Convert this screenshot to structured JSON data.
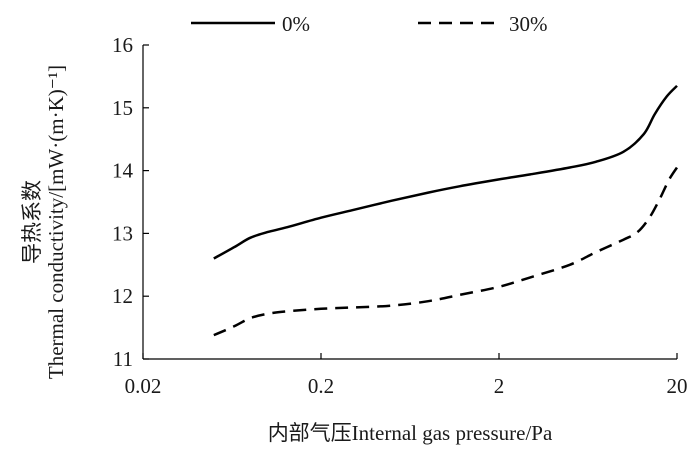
{
  "chart_data": {
    "type": "line",
    "xlabel": "内部气压Internal gas pressure/Pa",
    "ylabel_line1": "导热系数",
    "ylabel_line2": "Thermal conductivity/[mW·(m·K)⁻¹]",
    "x_scale": "log",
    "xlim": [
      0.02,
      20
    ],
    "ylim": [
      11,
      16
    ],
    "x_ticks": [
      0.02,
      0.2,
      2,
      20
    ],
    "x_tick_labels": [
      "0.02",
      "0.2",
      "2",
      "20"
    ],
    "y_ticks": [
      11,
      12,
      13,
      14,
      15,
      16
    ],
    "y_tick_labels": [
      "11",
      "12",
      "13",
      "14",
      "15",
      "16"
    ],
    "grid": false,
    "legend_position": "top",
    "series": [
      {
        "name": "0%",
        "style": "solid",
        "color": "#000000",
        "points": [
          [
            0.05,
            12.6
          ],
          [
            0.065,
            12.78
          ],
          [
            0.08,
            12.93
          ],
          [
            0.1,
            13.02
          ],
          [
            0.13,
            13.1
          ],
          [
            0.2,
            13.25
          ],
          [
            0.3,
            13.37
          ],
          [
            0.5,
            13.52
          ],
          [
            0.8,
            13.65
          ],
          [
            1.2,
            13.75
          ],
          [
            2,
            13.86
          ],
          [
            3,
            13.94
          ],
          [
            5,
            14.05
          ],
          [
            7,
            14.14
          ],
          [
            10,
            14.3
          ],
          [
            13,
            14.58
          ],
          [
            15,
            14.9
          ],
          [
            17.5,
            15.18
          ],
          [
            20,
            15.35
          ]
        ]
      },
      {
        "name": "30%",
        "style": "dashed",
        "color": "#000000",
        "points": [
          [
            0.05,
            11.38
          ],
          [
            0.065,
            11.52
          ],
          [
            0.08,
            11.65
          ],
          [
            0.1,
            11.72
          ],
          [
            0.13,
            11.76
          ],
          [
            0.2,
            11.8
          ],
          [
            0.3,
            11.82
          ],
          [
            0.5,
            11.85
          ],
          [
            0.8,
            11.92
          ],
          [
            1.2,
            12.02
          ],
          [
            2,
            12.15
          ],
          [
            3,
            12.3
          ],
          [
            5,
            12.5
          ],
          [
            7,
            12.7
          ],
          [
            10,
            12.9
          ],
          [
            12,
            13.02
          ],
          [
            14,
            13.25
          ],
          [
            16,
            13.55
          ],
          [
            18,
            13.85
          ],
          [
            20,
            14.05
          ]
        ]
      }
    ]
  }
}
